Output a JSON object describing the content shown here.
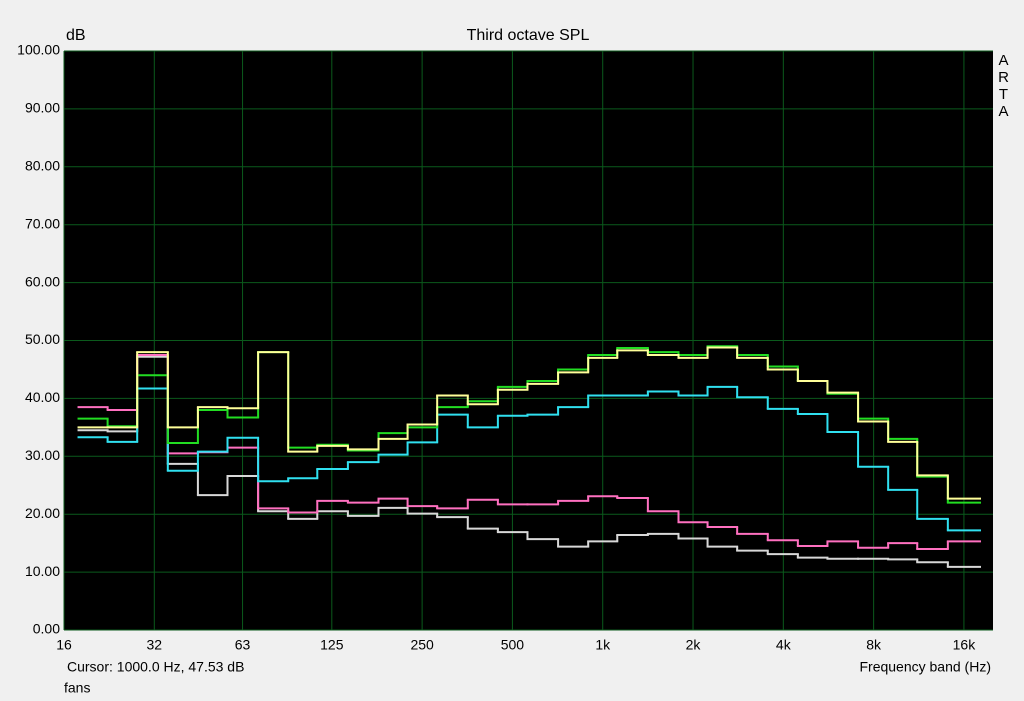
{
  "chart_data": {
    "type": "step",
    "title": "Third octave SPL",
    "y_label": "dB",
    "x_label": "Frequency band (Hz)",
    "watermark": "ARTA",
    "cursor_text": "Cursor:  1000.0 Hz, 47.53 dB",
    "annotation": "fans",
    "log_x": true,
    "grid": true,
    "xlim": [
      16,
      20000
    ],
    "ylim": [
      0,
      100
    ],
    "xticks": [
      16,
      32,
      63,
      125,
      250,
      500,
      {
        "value": 1000,
        "label": "1k"
      },
      {
        "value": 2000,
        "label": "2k"
      },
      {
        "value": 4000,
        "label": "4k"
      },
      {
        "value": 8000,
        "label": "8k"
      },
      {
        "value": 16000,
        "label": "16k"
      }
    ],
    "yticks": [
      {
        "value": 0,
        "label": "0.00"
      },
      {
        "value": 10,
        "label": "10.00"
      },
      {
        "value": 20,
        "label": "20.00"
      },
      {
        "value": 30,
        "label": "30.00"
      },
      {
        "value": 40,
        "label": "40.00"
      },
      {
        "value": 50,
        "label": "50.00"
      },
      {
        "value": 60,
        "label": "60.00"
      },
      {
        "value": 70,
        "label": "70.00"
      },
      {
        "value": 80,
        "label": "80.00"
      },
      {
        "value": 90,
        "label": "90.00"
      },
      {
        "value": 100,
        "label": "100.00"
      }
    ],
    "x": [
      20,
      25,
      31.5,
      40,
      50,
      63,
      80,
      100,
      125,
      160,
      200,
      250,
      315,
      400,
      500,
      630,
      800,
      1000,
      1250,
      1600,
      2000,
      2500,
      3150,
      4000,
      5000,
      6300,
      8000,
      10000,
      12500,
      16000
    ],
    "series": [
      {
        "color": "#d8d8d8",
        "values": [
          34.5,
          34.3,
          47.2,
          28.7,
          23.3,
          26.6,
          20.5,
          19.2,
          20.5,
          19.7,
          21.1,
          20.1,
          19.5,
          17.5,
          16.9,
          15.7,
          14.4,
          15.3,
          16.4,
          16.6,
          15.8,
          14.4,
          13.7,
          13.1,
          12.5,
          12.3,
          12.3,
          12.2,
          11.7,
          10.9
        ]
      },
      {
        "color": "#ff70c0",
        "values": [
          38.5,
          38,
          47.5,
          30.5,
          30.7,
          31.5,
          21,
          20.3,
          22.3,
          22,
          22.7,
          21.4,
          21,
          22.5,
          21.7,
          21.7,
          22.3,
          23.1,
          22.8,
          20.5,
          18.6,
          17.8,
          16.6,
          15.5,
          14.5,
          15.3,
          14.2,
          15,
          14,
          15.3
        ]
      },
      {
        "color": "#30e0f0",
        "values": [
          33.3,
          32.5,
          41.7,
          27.5,
          30.8,
          33.2,
          25.7,
          26.2,
          27.8,
          29,
          30.3,
          32.4,
          37.2,
          35,
          37,
          37.2,
          38.5,
          40.5,
          40.5,
          41.2,
          40.5,
          42,
          40.2,
          38.2,
          37.3,
          34.2,
          28.2,
          24.2,
          19.2,
          17.2
        ]
      },
      {
        "color": "#22dd22",
        "values": [
          36.5,
          35.2,
          44,
          32.3,
          38,
          36.7,
          48,
          31.5,
          32,
          31,
          34,
          35,
          38.5,
          39.5,
          42,
          43,
          45,
          47.5,
          48.7,
          48,
          47.5,
          49,
          47.5,
          45.5,
          43,
          40.8,
          36.5,
          33,
          26.5,
          22
        ]
      },
      {
        "color": "#ffff99",
        "values": [
          35,
          35,
          48,
          35,
          38.5,
          38.3,
          48,
          30.8,
          31.8,
          31.2,
          33,
          35.5,
          40.5,
          39,
          41.5,
          42.5,
          44.5,
          47,
          48.3,
          47.5,
          47,
          48.8,
          47,
          45,
          43,
          41,
          36,
          32.5,
          26.7,
          22.7
        ]
      }
    ]
  }
}
